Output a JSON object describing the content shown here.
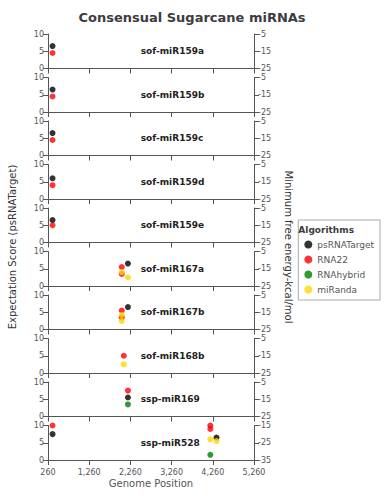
{
  "chart_data": [
    {
      "type": "scatter",
      "title": "Consensual Sugarcane miRNAs",
      "ylabel": "Expectation Score (psRNATarget)",
      "y2label": "Minimum free energy-kcal/mol",
      "legend": "right",
      "legend_title": "Algorithms",
      "annotation": "sof-miR159a",
      "xlim": [
        260,
        5260
      ],
      "xticks": [
        260,
        1260,
        2260,
        3260,
        4260,
        5260
      ],
      "ylim": [
        0,
        10
      ],
      "yticks": [
        0,
        5,
        10
      ],
      "y2lim": [
        -25,
        -5
      ],
      "y2ticks": [
        -25,
        -15,
        -5
      ],
      "grid": false,
      "tick_labels": "y",
      "series": [
        {
          "name": "psRNATarget",
          "color": "black",
          "x": [
            370
          ],
          "values": [
            6.5
          ]
        },
        {
          "name": "RNA22",
          "color": "red",
          "x": [
            370
          ],
          "values": [
            4.5
          ]
        },
        {
          "name": "RNAhybrid",
          "color": "green",
          "x": [],
          "values": []
        },
        {
          "name": "miRanda",
          "color": "gold",
          "x": [],
          "values": []
        }
      ]
    },
    {
      "type": "scatter",
      "annotation": "sof-miR159b",
      "xlim": [
        260,
        5260
      ],
      "xticks": [
        260,
        1260,
        2260,
        3260,
        4260,
        5260
      ],
      "ylim": [
        0,
        10
      ],
      "yticks": [
        0,
        5,
        10
      ],
      "y2lim": [
        -25,
        -5
      ],
      "y2ticks": [
        -25,
        -15,
        -5
      ],
      "grid": false,
      "tick_labels": "y",
      "series": [
        {
          "name": "psRNATarget",
          "color": "black",
          "x": [
            370
          ],
          "values": [
            6.5
          ]
        },
        {
          "name": "RNA22",
          "color": "red",
          "x": [
            370
          ],
          "values": [
            4.5
          ]
        },
        {
          "name": "RNAhybrid",
          "color": "green",
          "x": [],
          "values": []
        },
        {
          "name": "miRanda",
          "color": "gold",
          "x": [],
          "values": []
        }
      ]
    },
    {
      "type": "scatter",
      "annotation": "sof-miR159c",
      "xlim": [
        260,
        5260
      ],
      "xticks": [
        260,
        1260,
        2260,
        3260,
        4260,
        5260
      ],
      "ylim": [
        0,
        10
      ],
      "yticks": [
        0,
        5,
        10
      ],
      "y2lim": [
        -25,
        -5
      ],
      "y2ticks": [
        -25,
        -15,
        -5
      ],
      "grid": false,
      "tick_labels": "y",
      "series": [
        {
          "name": "psRNATarget",
          "color": "black",
          "x": [
            370
          ],
          "values": [
            6.5
          ]
        },
        {
          "name": "RNA22",
          "color": "red",
          "x": [
            370
          ],
          "values": [
            4.5
          ]
        },
        {
          "name": "RNAhybrid",
          "color": "green",
          "x": [],
          "values": []
        },
        {
          "name": "miRanda",
          "color": "gold",
          "x": [],
          "values": []
        }
      ]
    },
    {
      "type": "scatter",
      "annotation": "sof-miR159d",
      "xlim": [
        260,
        5260
      ],
      "xticks": [
        260,
        1260,
        2260,
        3260,
        4260,
        5260
      ],
      "ylim": [
        0,
        10
      ],
      "yticks": [
        0,
        5,
        10
      ],
      "y2lim": [
        -25,
        -5
      ],
      "y2ticks": [
        -25,
        -15,
        -5
      ],
      "grid": false,
      "tick_labels": "y",
      "series": [
        {
          "name": "psRNATarget",
          "color": "black",
          "x": [
            370
          ],
          "values": [
            6.0
          ]
        },
        {
          "name": "RNA22",
          "color": "red",
          "x": [
            370
          ],
          "values": [
            4.0
          ]
        },
        {
          "name": "RNAhybrid",
          "color": "green",
          "x": [],
          "values": []
        },
        {
          "name": "miRanda",
          "color": "gold",
          "x": [],
          "values": []
        }
      ]
    },
    {
      "type": "scatter",
      "annotation": "sof-miR159e",
      "xlim": [
        260,
        5260
      ],
      "xticks": [
        260,
        1260,
        2260,
        3260,
        4260,
        5260
      ],
      "ylim": [
        0,
        10
      ],
      "yticks": [
        0,
        5,
        10
      ],
      "y2lim": [
        -25,
        -5
      ],
      "y2ticks": [
        -25,
        -15,
        -5
      ],
      "grid": false,
      "tick_labels": "y",
      "series": [
        {
          "name": "psRNATarget",
          "color": "black",
          "x": [
            370
          ],
          "values": [
            6.5
          ]
        },
        {
          "name": "RNA22",
          "color": "red",
          "x": [
            370
          ],
          "values": [
            5.0
          ]
        },
        {
          "name": "RNAhybrid",
          "color": "green",
          "x": [],
          "values": []
        },
        {
          "name": "miRanda",
          "color": "gold",
          "x": [],
          "values": []
        }
      ]
    },
    {
      "type": "scatter",
      "annotation": "sof-miR167a",
      "xlim": [
        260,
        5260
      ],
      "xticks": [
        260,
        1260,
        2260,
        3260,
        4260,
        5260
      ],
      "ylim": [
        0,
        10
      ],
      "yticks": [
        0,
        5,
        10
      ],
      "y2lim": [
        -25,
        -5
      ],
      "y2ticks": [
        -25,
        -15,
        -5
      ],
      "grid": false,
      "tick_labels": "y",
      "series": [
        {
          "name": "psRNATarget",
          "color": "black",
          "x": [
            2200
          ],
          "values": [
            6.5
          ]
        },
        {
          "name": "RNA22",
          "color": "red",
          "x": [
            2050,
            2050
          ],
          "values": [
            5.5,
            3.5
          ]
        },
        {
          "name": "RNAhybrid",
          "color": "green",
          "x": [],
          "values": []
        },
        {
          "name": "miRanda",
          "color": "gold",
          "x": [
            2050,
            2200
          ],
          "values": [
            4.0,
            2.5
          ]
        }
      ]
    },
    {
      "type": "scatter",
      "annotation": "sof-miR167b",
      "xlim": [
        260,
        5260
      ],
      "xticks": [
        260,
        1260,
        2260,
        3260,
        4260,
        5260
      ],
      "ylim": [
        0,
        10
      ],
      "yticks": [
        0,
        5,
        10
      ],
      "y2lim": [
        -25,
        -5
      ],
      "y2ticks": [
        -25,
        -15,
        -5
      ],
      "grid": false,
      "tick_labels": "y",
      "series": [
        {
          "name": "psRNATarget",
          "color": "black",
          "x": [
            2200
          ],
          "values": [
            6.5
          ]
        },
        {
          "name": "RNA22",
          "color": "red",
          "x": [
            2050,
            2050
          ],
          "values": [
            5.5,
            3.5
          ]
        },
        {
          "name": "RNAhybrid",
          "color": "green",
          "x": [],
          "values": []
        },
        {
          "name": "miRanda",
          "color": "gold",
          "x": [
            2050,
            2050
          ],
          "values": [
            4.2,
            2.5
          ]
        }
      ]
    },
    {
      "type": "scatter",
      "annotation": "sof-miR168b",
      "xlim": [
        260,
        5260
      ],
      "xticks": [
        260,
        1260,
        2260,
        3260,
        4260,
        5260
      ],
      "ylim": [
        0,
        10
      ],
      "yticks": [
        0,
        5,
        10
      ],
      "y2lim": [
        -25,
        -5
      ],
      "y2ticks": [
        -25,
        -15,
        -5
      ],
      "grid": false,
      "tick_labels": "y",
      "series": [
        {
          "name": "psRNATarget",
          "color": "black",
          "x": [],
          "values": []
        },
        {
          "name": "RNA22",
          "color": "red",
          "x": [
            2100
          ],
          "values": [
            5.0
          ]
        },
        {
          "name": "RNAhybrid",
          "color": "green",
          "x": [],
          "values": []
        },
        {
          "name": "miRanda",
          "color": "gold",
          "x": [
            2100
          ],
          "values": [
            2.5
          ]
        }
      ]
    },
    {
      "type": "scatter",
      "annotation": "ssp-miR169",
      "xlim": [
        260,
        5260
      ],
      "xticks": [
        260,
        1260,
        2260,
        3260,
        4260,
        5260
      ],
      "ylim": [
        0,
        10
      ],
      "yticks": [
        0,
        5,
        10
      ],
      "y2lim": [
        -25,
        -5
      ],
      "y2ticks": [
        -25,
        -15,
        -5
      ],
      "grid": false,
      "tick_labels": "y",
      "series": [
        {
          "name": "psRNATarget",
          "color": "black",
          "x": [
            2200
          ],
          "values": [
            5.5
          ]
        },
        {
          "name": "RNA22",
          "color": "red",
          "x": [
            2200
          ],
          "values": [
            7.5
          ]
        },
        {
          "name": "RNAhybrid",
          "color": "green",
          "x": [
            2200
          ],
          "values": [
            3.5
          ]
        },
        {
          "name": "miRanda",
          "color": "gold",
          "x": [],
          "values": []
        }
      ]
    },
    {
      "type": "scatter",
      "annotation": "ssp-miR528",
      "xlabel": "Genome Position",
      "xlim": [
        260,
        5260
      ],
      "xticks": [
        260,
        1260,
        2260,
        3260,
        4260,
        5260
      ],
      "ylim": [
        0,
        10
      ],
      "yticks": [
        0,
        5,
        10
      ],
      "y2lim": [
        -35,
        -15
      ],
      "y2ticks": [
        -35,
        -25,
        -15
      ],
      "grid": false,
      "series": [
        {
          "name": "psRNATarget",
          "color": "black",
          "x": [
            370,
            4350
          ],
          "values": [
            7.5,
            6.5
          ]
        },
        {
          "name": "RNA22",
          "color": "red",
          "x": [
            370,
            4200,
            4200
          ],
          "values": [
            10.0,
            10.0,
            9.0
          ]
        },
        {
          "name": "RNAhybrid",
          "color": "green",
          "x": [
            4200
          ],
          "values": [
            1.5
          ]
        },
        {
          "name": "miRanda",
          "color": "gold",
          "x": [
            4200,
            4350
          ],
          "values": [
            6.0,
            5.5
          ]
        }
      ]
    }
  ]
}
